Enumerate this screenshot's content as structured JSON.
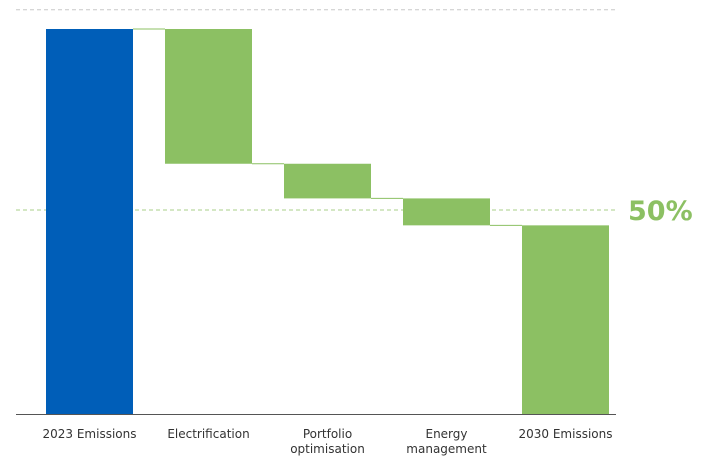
{
  "chart_data": {
    "type": "bar",
    "subtype": "waterfall",
    "categories": [
      [
        "2023 Emissions"
      ],
      [
        "Electrification"
      ],
      [
        "Portfolio",
        "optimisation"
      ],
      [
        "Energy",
        "management"
      ],
      [
        "2030 Emissions"
      ]
    ],
    "bars": [
      {
        "kind": "total",
        "start": 0,
        "end": 100
      },
      {
        "kind": "delta",
        "start": 100,
        "end": 65
      },
      {
        "kind": "delta",
        "start": 65,
        "end": 56
      },
      {
        "kind": "delta",
        "start": 56,
        "end": 49
      },
      {
        "kind": "total",
        "start": 0,
        "end": 49
      }
    ],
    "ylim": [
      0,
      105
    ],
    "reference_lines": [
      {
        "value": 105,
        "label": ""
      },
      {
        "value": 53,
        "label": "50%"
      }
    ],
    "grid": false,
    "title": "",
    "xlabel": "",
    "ylabel": ""
  },
  "colors": {
    "total_start": "#005eb8",
    "delta": "#8cc063",
    "total_end": "#8cc063",
    "connector": "#8cc063",
    "reference": "#a8cf8a",
    "top_reference": "#c8c8c8",
    "axis": "#555555",
    "label": "#333333",
    "ref_label": "#8cc063"
  }
}
